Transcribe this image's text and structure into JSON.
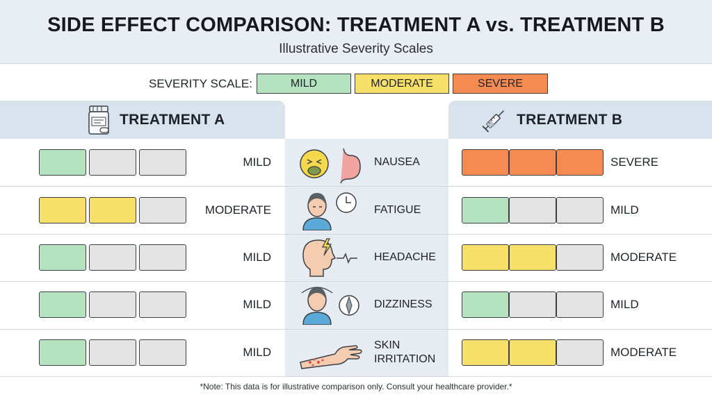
{
  "header": {
    "title": "SIDE EFFECT COMPARISON: TREATMENT A vs. TREATMENT B",
    "subtitle": "Illustrative Severity Scales"
  },
  "legend": {
    "label": "SEVERITY SCALE:",
    "items": [
      {
        "label": "MILD",
        "color": "#b5e3bf"
      },
      {
        "label": "MODERATE",
        "color": "#f7e06a"
      },
      {
        "label": "SEVERE",
        "color": "#f58a52"
      }
    ]
  },
  "colors": {
    "mild": "#b5e3bf",
    "moderate": "#f7e06a",
    "severe": "#f58a52",
    "empty": "#e4e4e4"
  },
  "treatments": {
    "a": {
      "label": "TREATMENT A",
      "icon": "pill-bottle-icon"
    },
    "b": {
      "label": "TREATMENT B",
      "icon": "syringe-icon"
    }
  },
  "chart_data": {
    "type": "table",
    "scale_levels": [
      "MILD",
      "MODERATE",
      "SEVERE"
    ],
    "rows": [
      {
        "effect": "NAUSEA",
        "icon": "nausea-face-stomach-icon",
        "a": "MILD",
        "a_level": 1,
        "b": "SEVERE",
        "b_level": 3
      },
      {
        "effect": "FATIGUE",
        "icon": "tired-person-clock-icon",
        "a": "MODERATE",
        "a_level": 2,
        "b": "MILD",
        "b_level": 1
      },
      {
        "effect": "HEADACHE",
        "icon": "head-lightning-icon",
        "a": "MILD",
        "a_level": 1,
        "b": "MODERATE",
        "b_level": 2
      },
      {
        "effect": "DIZZINESS",
        "icon": "dizzy-person-compass-icon",
        "a": "MILD",
        "a_level": 1,
        "b": "MILD",
        "b_level": 1
      },
      {
        "effect": "SKIN\nIRRITATION",
        "icon": "irritated-arm-icon",
        "a": "MILD",
        "a_level": 1,
        "b": "MODERATE",
        "b_level": 2
      }
    ]
  },
  "footer": {
    "note": "*Note: This data is for illustrative comparison only. Consult your healthcare provider.*"
  }
}
